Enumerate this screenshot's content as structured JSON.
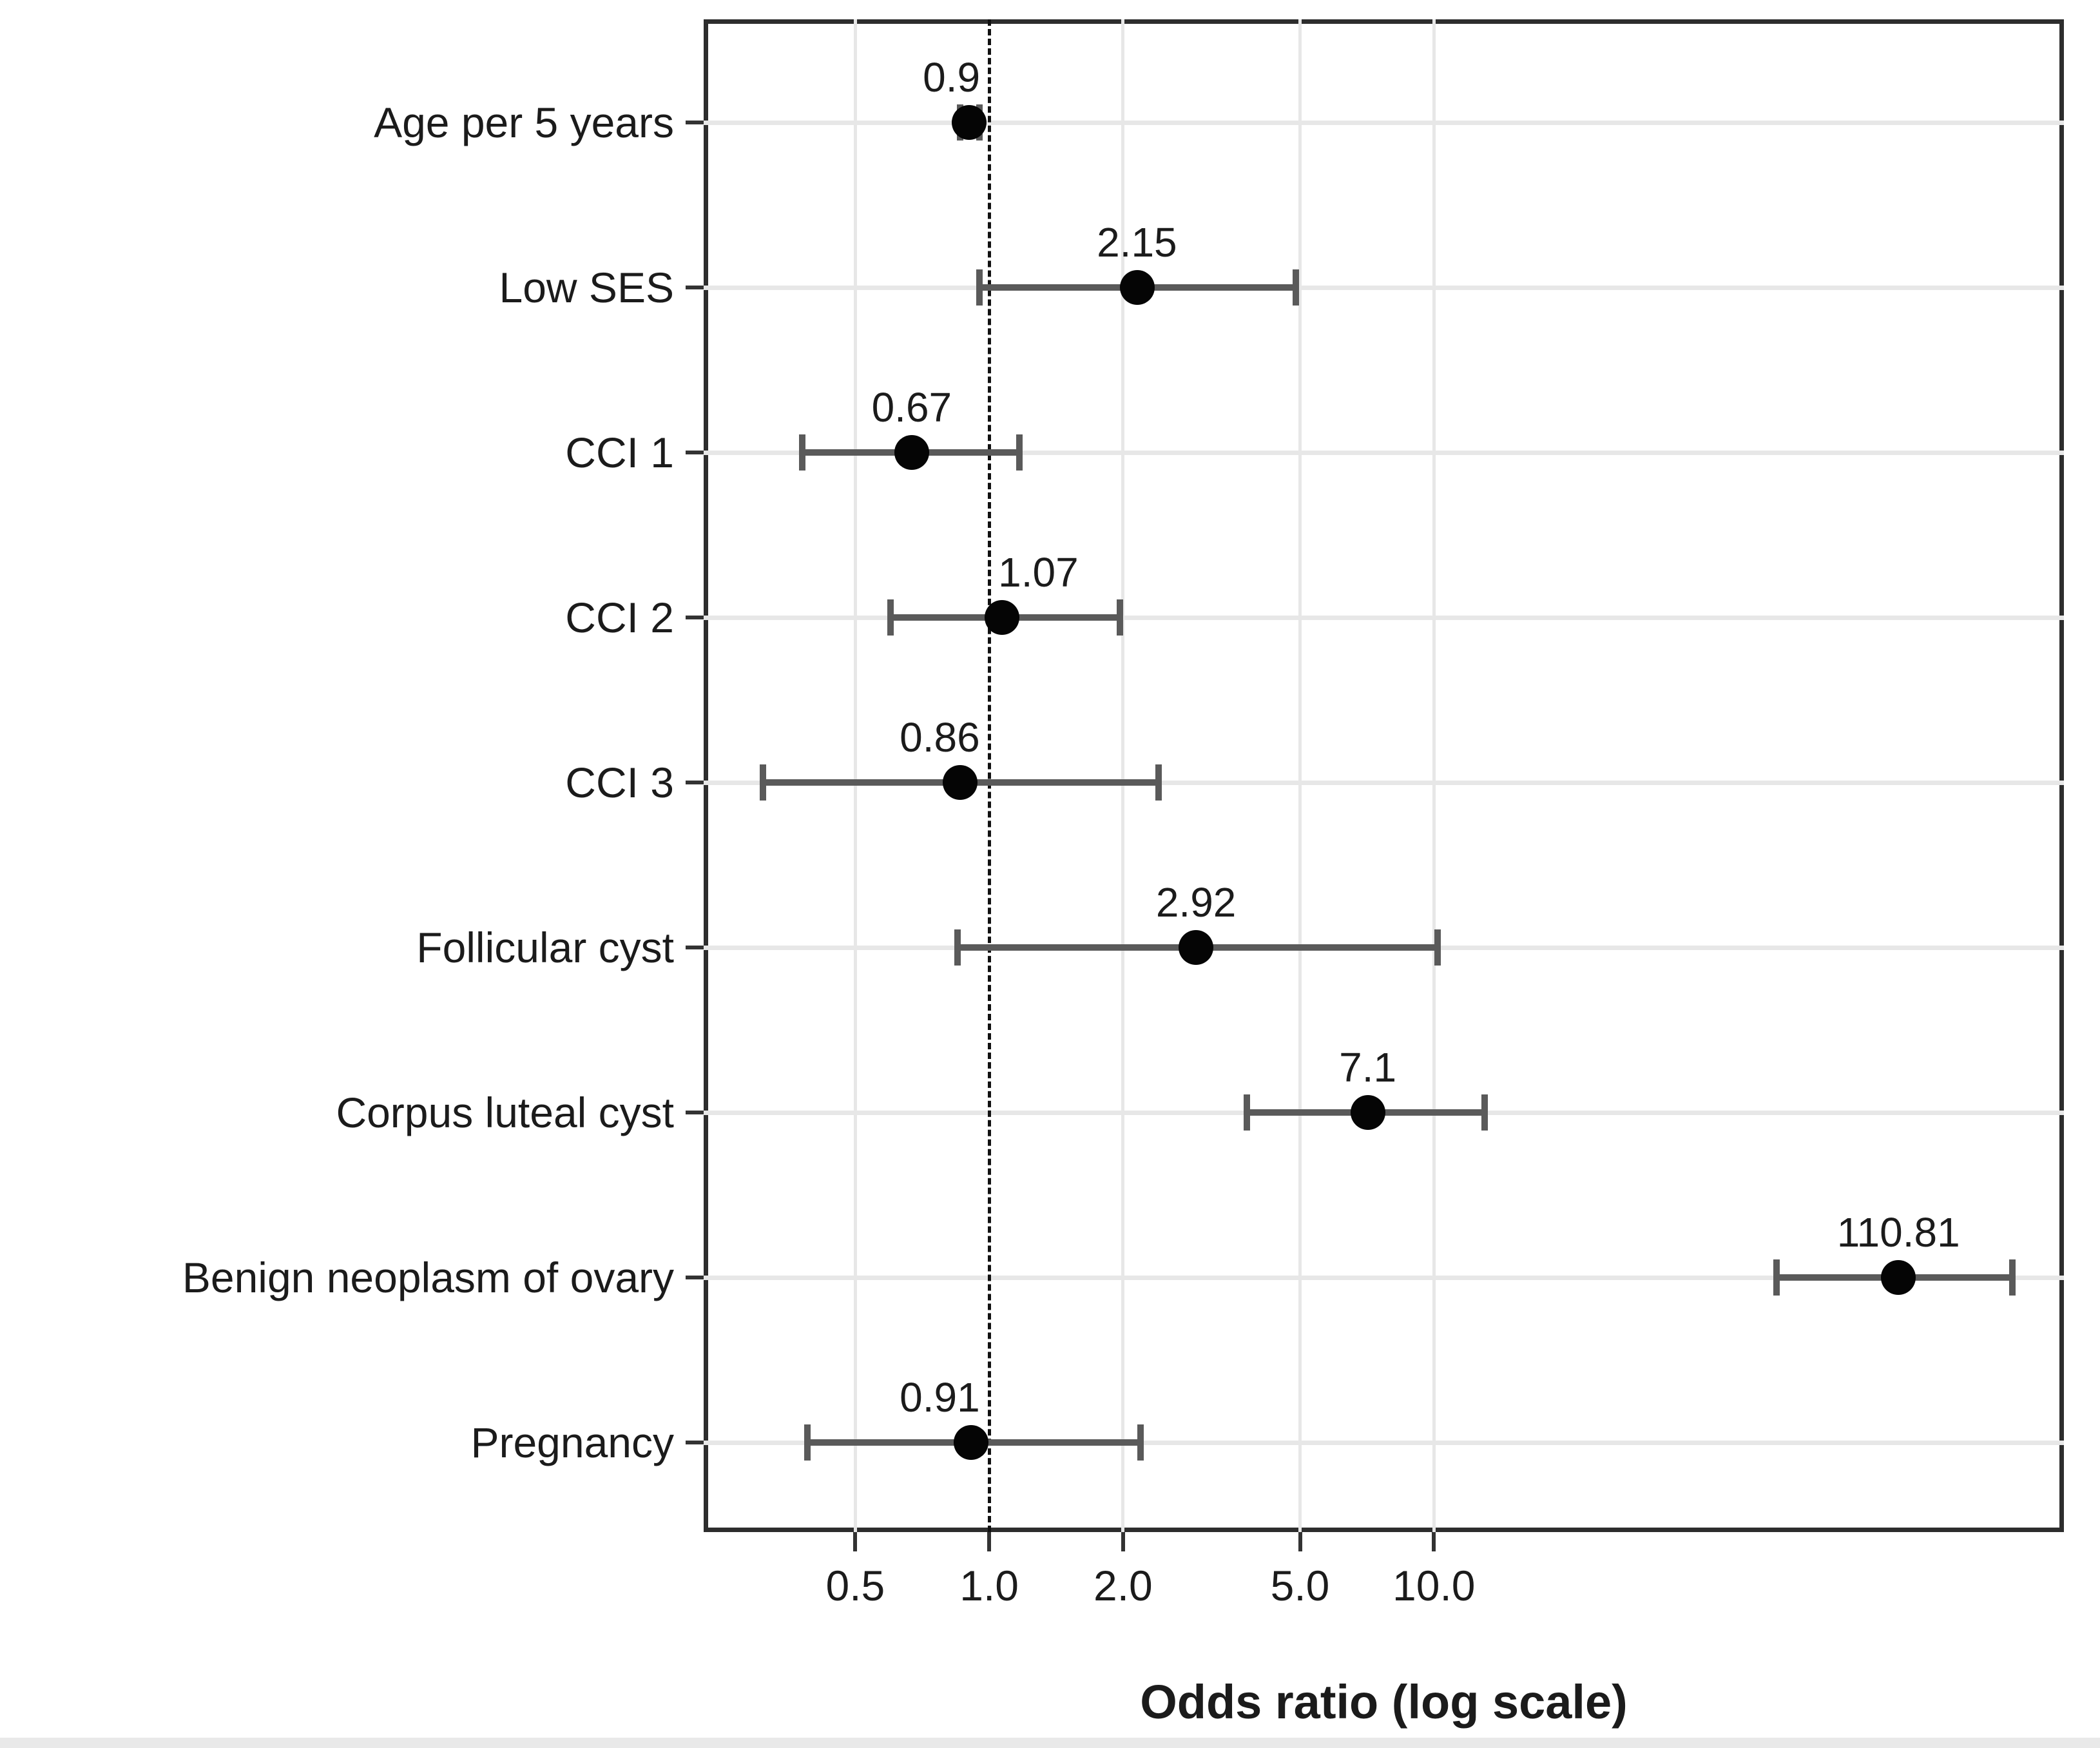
{
  "figure": {
    "background": "#ffffff",
    "bottom_strip_color": "#e9e9e9"
  },
  "chart_data": {
    "type": "scatter",
    "subtype": "forest_plot_odds_ratios",
    "title": "",
    "xlabel": "Odds ratio (log scale)",
    "ylabel": "",
    "x_scale": "log10",
    "x_domain": [
      0.228,
      261
    ],
    "grid": true,
    "legend": "none",
    "x_ticks": [
      {
        "value": 0.5,
        "label": "0.5"
      },
      {
        "value": 1.0,
        "label": "1.0"
      },
      {
        "value": 2.0,
        "label": "2.0"
      },
      {
        "value": 5.0,
        "label": "5.0"
      },
      {
        "value": 10.0,
        "label": "10.0"
      }
    ],
    "reference_line": {
      "value": 1.0,
      "style": "dashed",
      "color": "#111111"
    },
    "categories": [
      "Age per 5 years",
      "Low SES",
      "CCI 1",
      "CCI 2",
      "CCI 3",
      "Follicular cyst",
      "Corpus luteal cyst",
      "Benign neoplasm of ovary",
      "Pregnancy"
    ],
    "points": [
      {
        "label": "Age per 5 years",
        "odds_ratio": 0.9,
        "ci_low": 0.86,
        "ci_high": 0.95,
        "value_label": "0.9"
      },
      {
        "label": "Low SES",
        "odds_ratio": 2.15,
        "ci_low": 0.95,
        "ci_high": 4.9,
        "value_label": "2.15"
      },
      {
        "label": "CCI 1",
        "odds_ratio": 0.67,
        "ci_low": 0.38,
        "ci_high": 1.17,
        "value_label": "0.67"
      },
      {
        "label": "CCI 2",
        "odds_ratio": 1.07,
        "ci_low": 0.6,
        "ci_high": 1.97,
        "value_label": "1.07"
      },
      {
        "label": "CCI 3",
        "odds_ratio": 0.86,
        "ci_low": 0.31,
        "ci_high": 2.4,
        "value_label": "0.86"
      },
      {
        "label": "Follicular cyst",
        "odds_ratio": 2.92,
        "ci_low": 0.85,
        "ci_high": 10.2,
        "value_label": "2.92"
      },
      {
        "label": "Corpus luteal cyst",
        "odds_ratio": 7.1,
        "ci_low": 3.8,
        "ci_high": 13.0,
        "value_label": "7.1"
      },
      {
        "label": "Benign neoplasm of ovary",
        "odds_ratio": 110.81,
        "ci_low": 59.0,
        "ci_high": 200.0,
        "value_label": "110.81"
      },
      {
        "label": "Pregnancy",
        "odds_ratio": 0.91,
        "ci_low": 0.39,
        "ci_high": 2.19,
        "value_label": "0.91"
      }
    ],
    "colors": {
      "point": "#050505",
      "error_bar": "#5a5a5a",
      "gridline": "#e7e7e7",
      "panel_border": "#2d2d2d",
      "text": "#1b1b1b"
    }
  }
}
